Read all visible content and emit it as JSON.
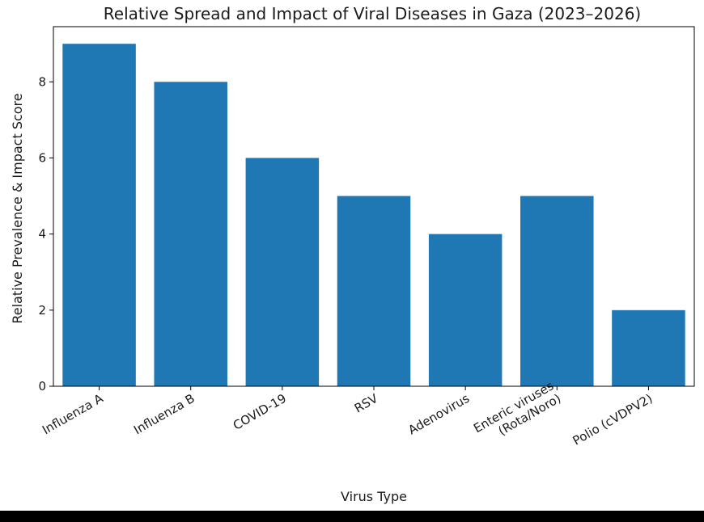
{
  "chart_data": {
    "type": "bar",
    "title": "Relative Spread and Impact of Viral Diseases in Gaza (2023–2026)",
    "xlabel": "Virus Type",
    "ylabel": "Relative Prevalence & Impact Score",
    "categories": [
      "Influenza A",
      "Influenza B",
      "COVID-19",
      "RSV",
      "Adenovirus",
      "Enteric viruses\n(Rota/Noro)",
      "Polio (cVDPV2)"
    ],
    "values": [
      9,
      8,
      6,
      5,
      4,
      5,
      2
    ],
    "ylim": [
      0,
      9.45
    ],
    "yticks": [
      0,
      2,
      4,
      6,
      8
    ],
    "grid": false,
    "bar_color": "#1f77b4"
  }
}
